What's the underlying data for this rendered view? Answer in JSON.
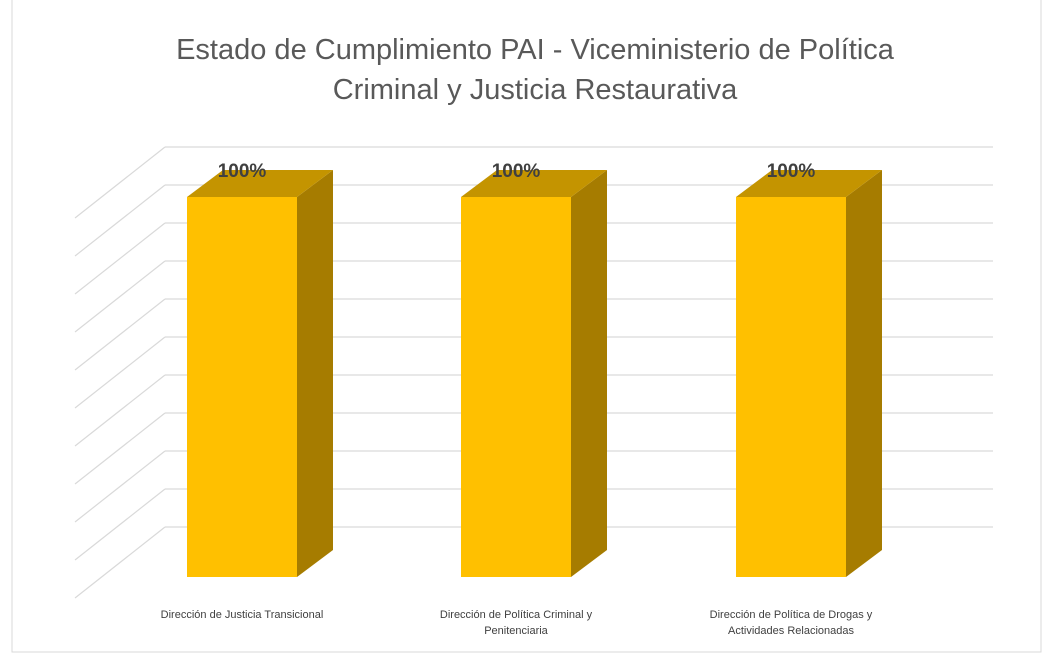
{
  "chart_data": {
    "type": "bar3d",
    "title": "Estado de Cumplimiento PAI - Viceministerio de Política Criminal y Justicia Restaurativa",
    "categories": [
      "Dirección de Justicia Transicional",
      "Dirección de Política Criminal y Penitenciaria",
      "Dirección de Política de Drogas y Actividades Relacionadas"
    ],
    "values": [
      100,
      100,
      100
    ],
    "value_labels": [
      "100%",
      "100%",
      "100%"
    ],
    "color": "#ffc000",
    "ylim": [
      0,
      100
    ],
    "yticks": [
      0,
      10,
      20,
      30,
      40,
      50,
      60,
      70,
      80,
      90,
      100
    ],
    "grid": true
  }
}
